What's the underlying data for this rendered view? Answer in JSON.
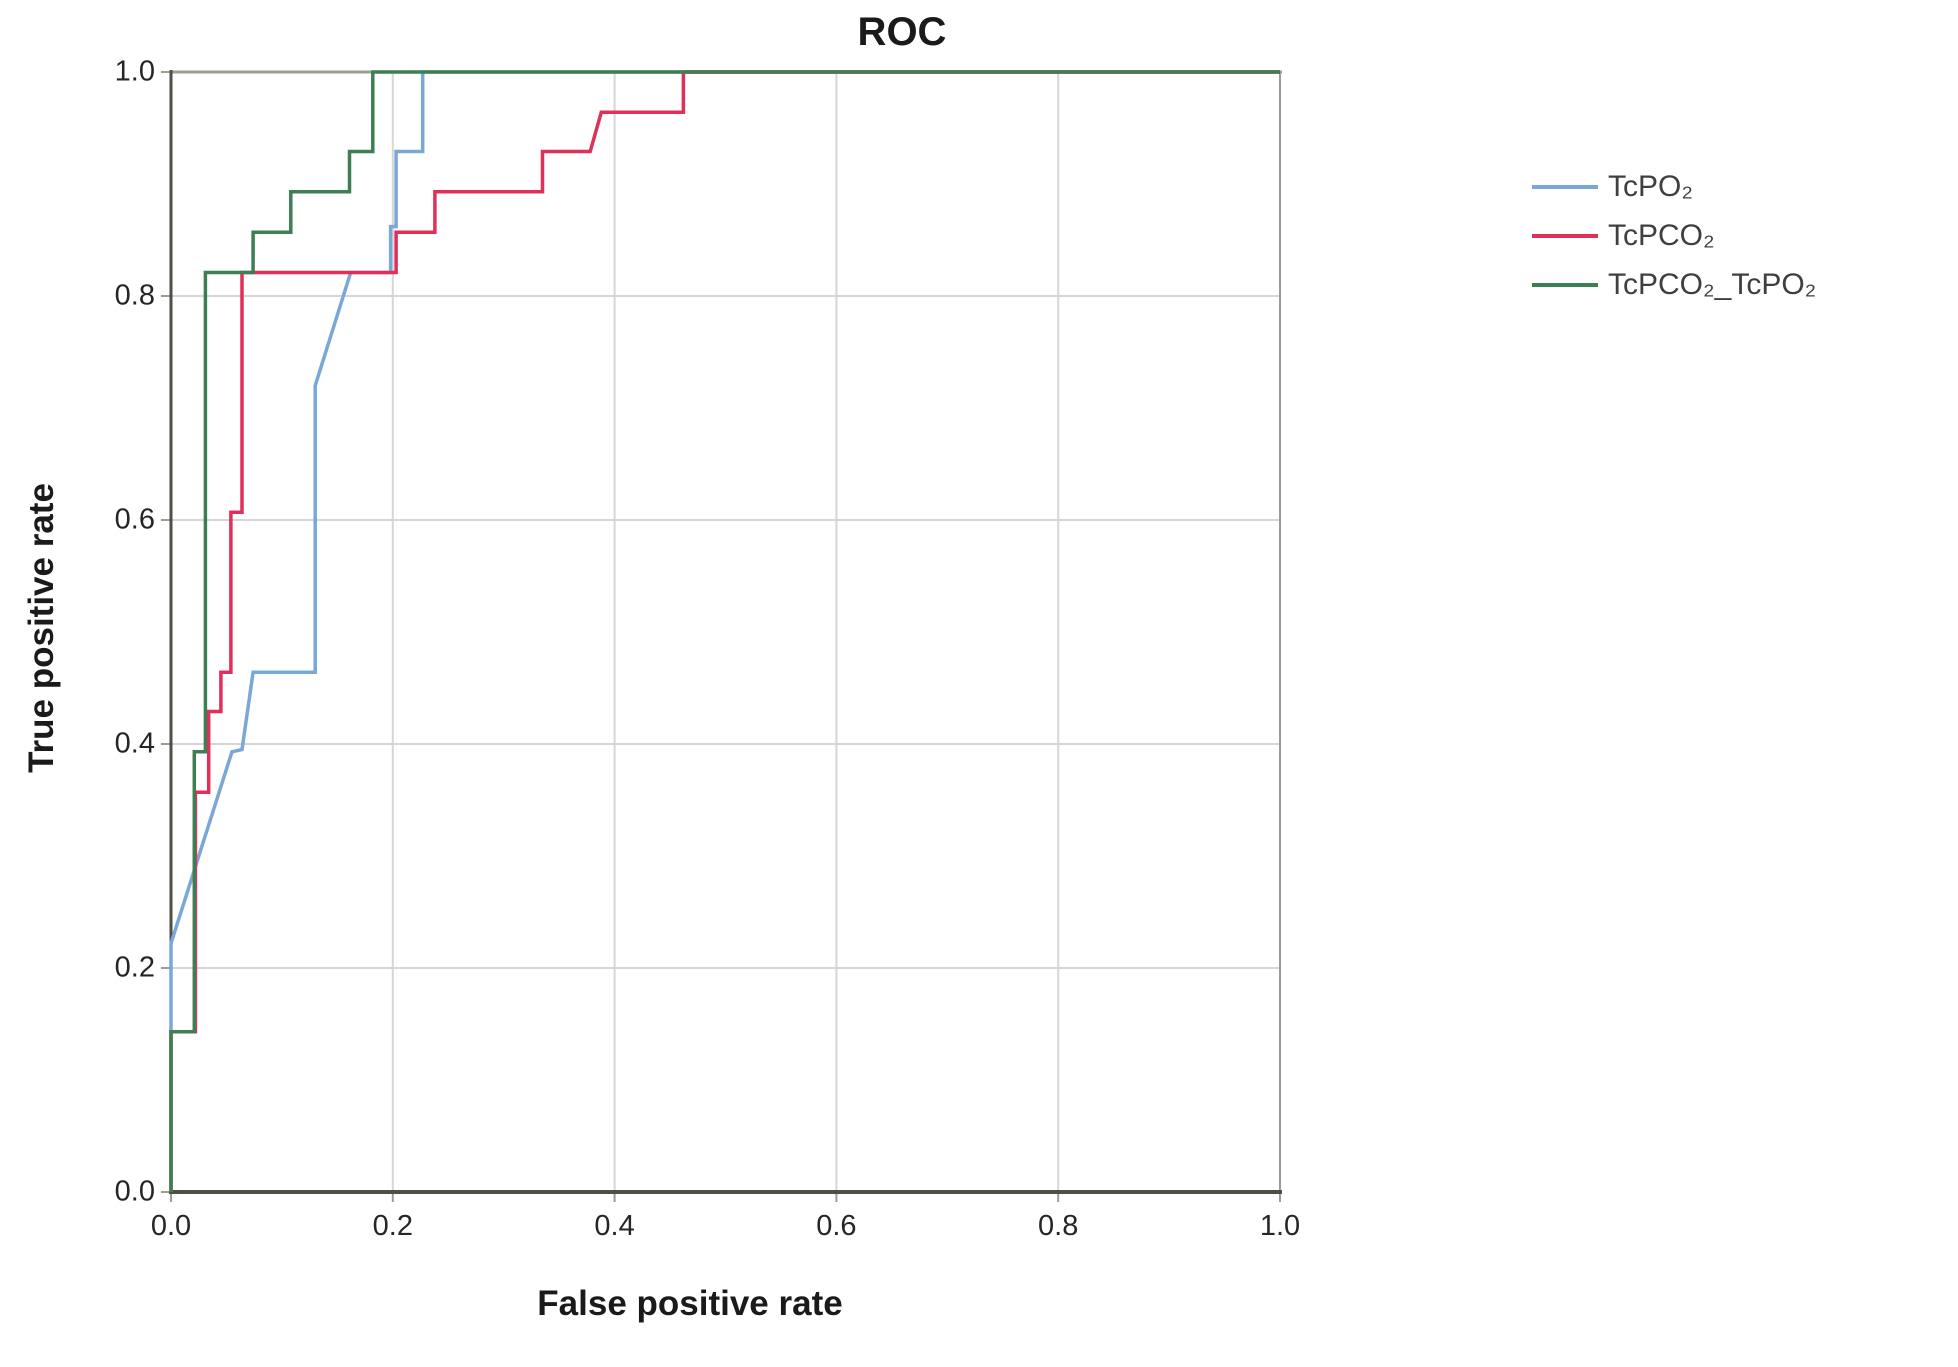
{
  "figure": {
    "title": "ROC",
    "x_axis_label": "False positive rate",
    "y_axis_label": "True positive rate"
  },
  "legend": {
    "items": [
      {
        "label": "TcPO₂",
        "color": "#7BA7D7"
      },
      {
        "label": "TcPCO₂",
        "color": "#E0305A"
      },
      {
        "label": "TcPCO₂_TcPO₂",
        "color": "#3E7E53"
      }
    ]
  },
  "colors": {
    "grid": "#D6D6D6",
    "frame": "#9C9C90",
    "axis": "#4F4F46",
    "tick_text": "#262626"
  },
  "chart_data": {
    "type": "line",
    "subtype": "roc-step-curves",
    "title": "ROC",
    "xlabel": "False positive rate",
    "ylabel": "True positive rate",
    "xlim": [
      0,
      1
    ],
    "ylim": [
      0,
      1
    ],
    "grid": true,
    "legend_position": "right",
    "ticks": [
      {
        "label": "0.0",
        "value": 0.0
      },
      {
        "label": "0.2",
        "value": 0.2
      },
      {
        "label": "0.4",
        "value": 0.4
      },
      {
        "label": "0.6",
        "value": 0.6
      },
      {
        "label": "0.8",
        "value": 0.8
      },
      {
        "label": "1.0",
        "value": 1.0
      }
    ],
    "series": [
      {
        "name": "TcPO₂",
        "color": "#7BA7D7",
        "points": [
          [
            0,
            0
          ],
          [
            0,
            0.222
          ],
          [
            0.054,
            0.39
          ],
          [
            0.055,
            0.393
          ],
          [
            0.064,
            0.395
          ],
          [
            0.074,
            0.464
          ],
          [
            0.13,
            0.464
          ],
          [
            0.13,
            0.72
          ],
          [
            0.162,
            0.821
          ],
          [
            0.198,
            0.821
          ],
          [
            0.198,
            0.862
          ],
          [
            0.203,
            0.862
          ],
          [
            0.203,
            0.929
          ],
          [
            0.227,
            0.929
          ],
          [
            0.227,
            1.0
          ],
          [
            1,
            1
          ]
        ]
      },
      {
        "name": "TcPCO₂",
        "color": "#E0305A",
        "points": [
          [
            0,
            0
          ],
          [
            0,
            0.143
          ],
          [
            0.022,
            0.143
          ],
          [
            0.022,
            0.357
          ],
          [
            0.034,
            0.357
          ],
          [
            0.034,
            0.429
          ],
          [
            0.045,
            0.429
          ],
          [
            0.045,
            0.464
          ],
          [
            0.054,
            0.464
          ],
          [
            0.054,
            0.607
          ],
          [
            0.064,
            0.607
          ],
          [
            0.064,
            0.821
          ],
          [
            0.203,
            0.821
          ],
          [
            0.203,
            0.857
          ],
          [
            0.238,
            0.857
          ],
          [
            0.238,
            0.893
          ],
          [
            0.335,
            0.893
          ],
          [
            0.335,
            0.929
          ],
          [
            0.378,
            0.929
          ],
          [
            0.388,
            0.964
          ],
          [
            0.462,
            0.964
          ],
          [
            0.462,
            1.0
          ],
          [
            1,
            1
          ]
        ]
      },
      {
        "name": "TcPCO₂_TcPO₂",
        "color": "#3E7E53",
        "points": [
          [
            0,
            0
          ],
          [
            0,
            0.143
          ],
          [
            0.021,
            0.143
          ],
          [
            0.021,
            0.393
          ],
          [
            0.031,
            0.393
          ],
          [
            0.031,
            0.821
          ],
          [
            0.074,
            0.821
          ],
          [
            0.074,
            0.857
          ],
          [
            0.108,
            0.857
          ],
          [
            0.108,
            0.893
          ],
          [
            0.161,
            0.893
          ],
          [
            0.161,
            0.929
          ],
          [
            0.182,
            0.929
          ],
          [
            0.182,
            1.0
          ],
          [
            1,
            1
          ]
        ]
      }
    ]
  }
}
